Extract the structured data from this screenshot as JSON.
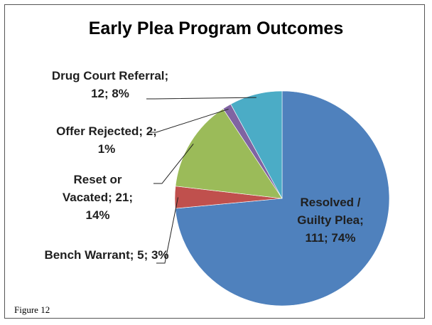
{
  "chart_data": {
    "type": "pie",
    "title": "Early Plea Program Outcomes",
    "values": [
      111,
      5,
      21,
      2,
      12
    ],
    "value_labels": [
      "Resolved / Guilty Plea; 111; 74%",
      "Bench Warrant; 5; 3%",
      "Reset or Vacated; 21; 14%",
      "Offer Rejected; 2; 1%",
      "Drug Court Referral; 12; 8%"
    ],
    "colors": [
      "#4f81bd",
      "#c0504d",
      "#9bbb59",
      "#8064a2",
      "#4bacc6"
    ]
  },
  "caption": "Figure 12"
}
